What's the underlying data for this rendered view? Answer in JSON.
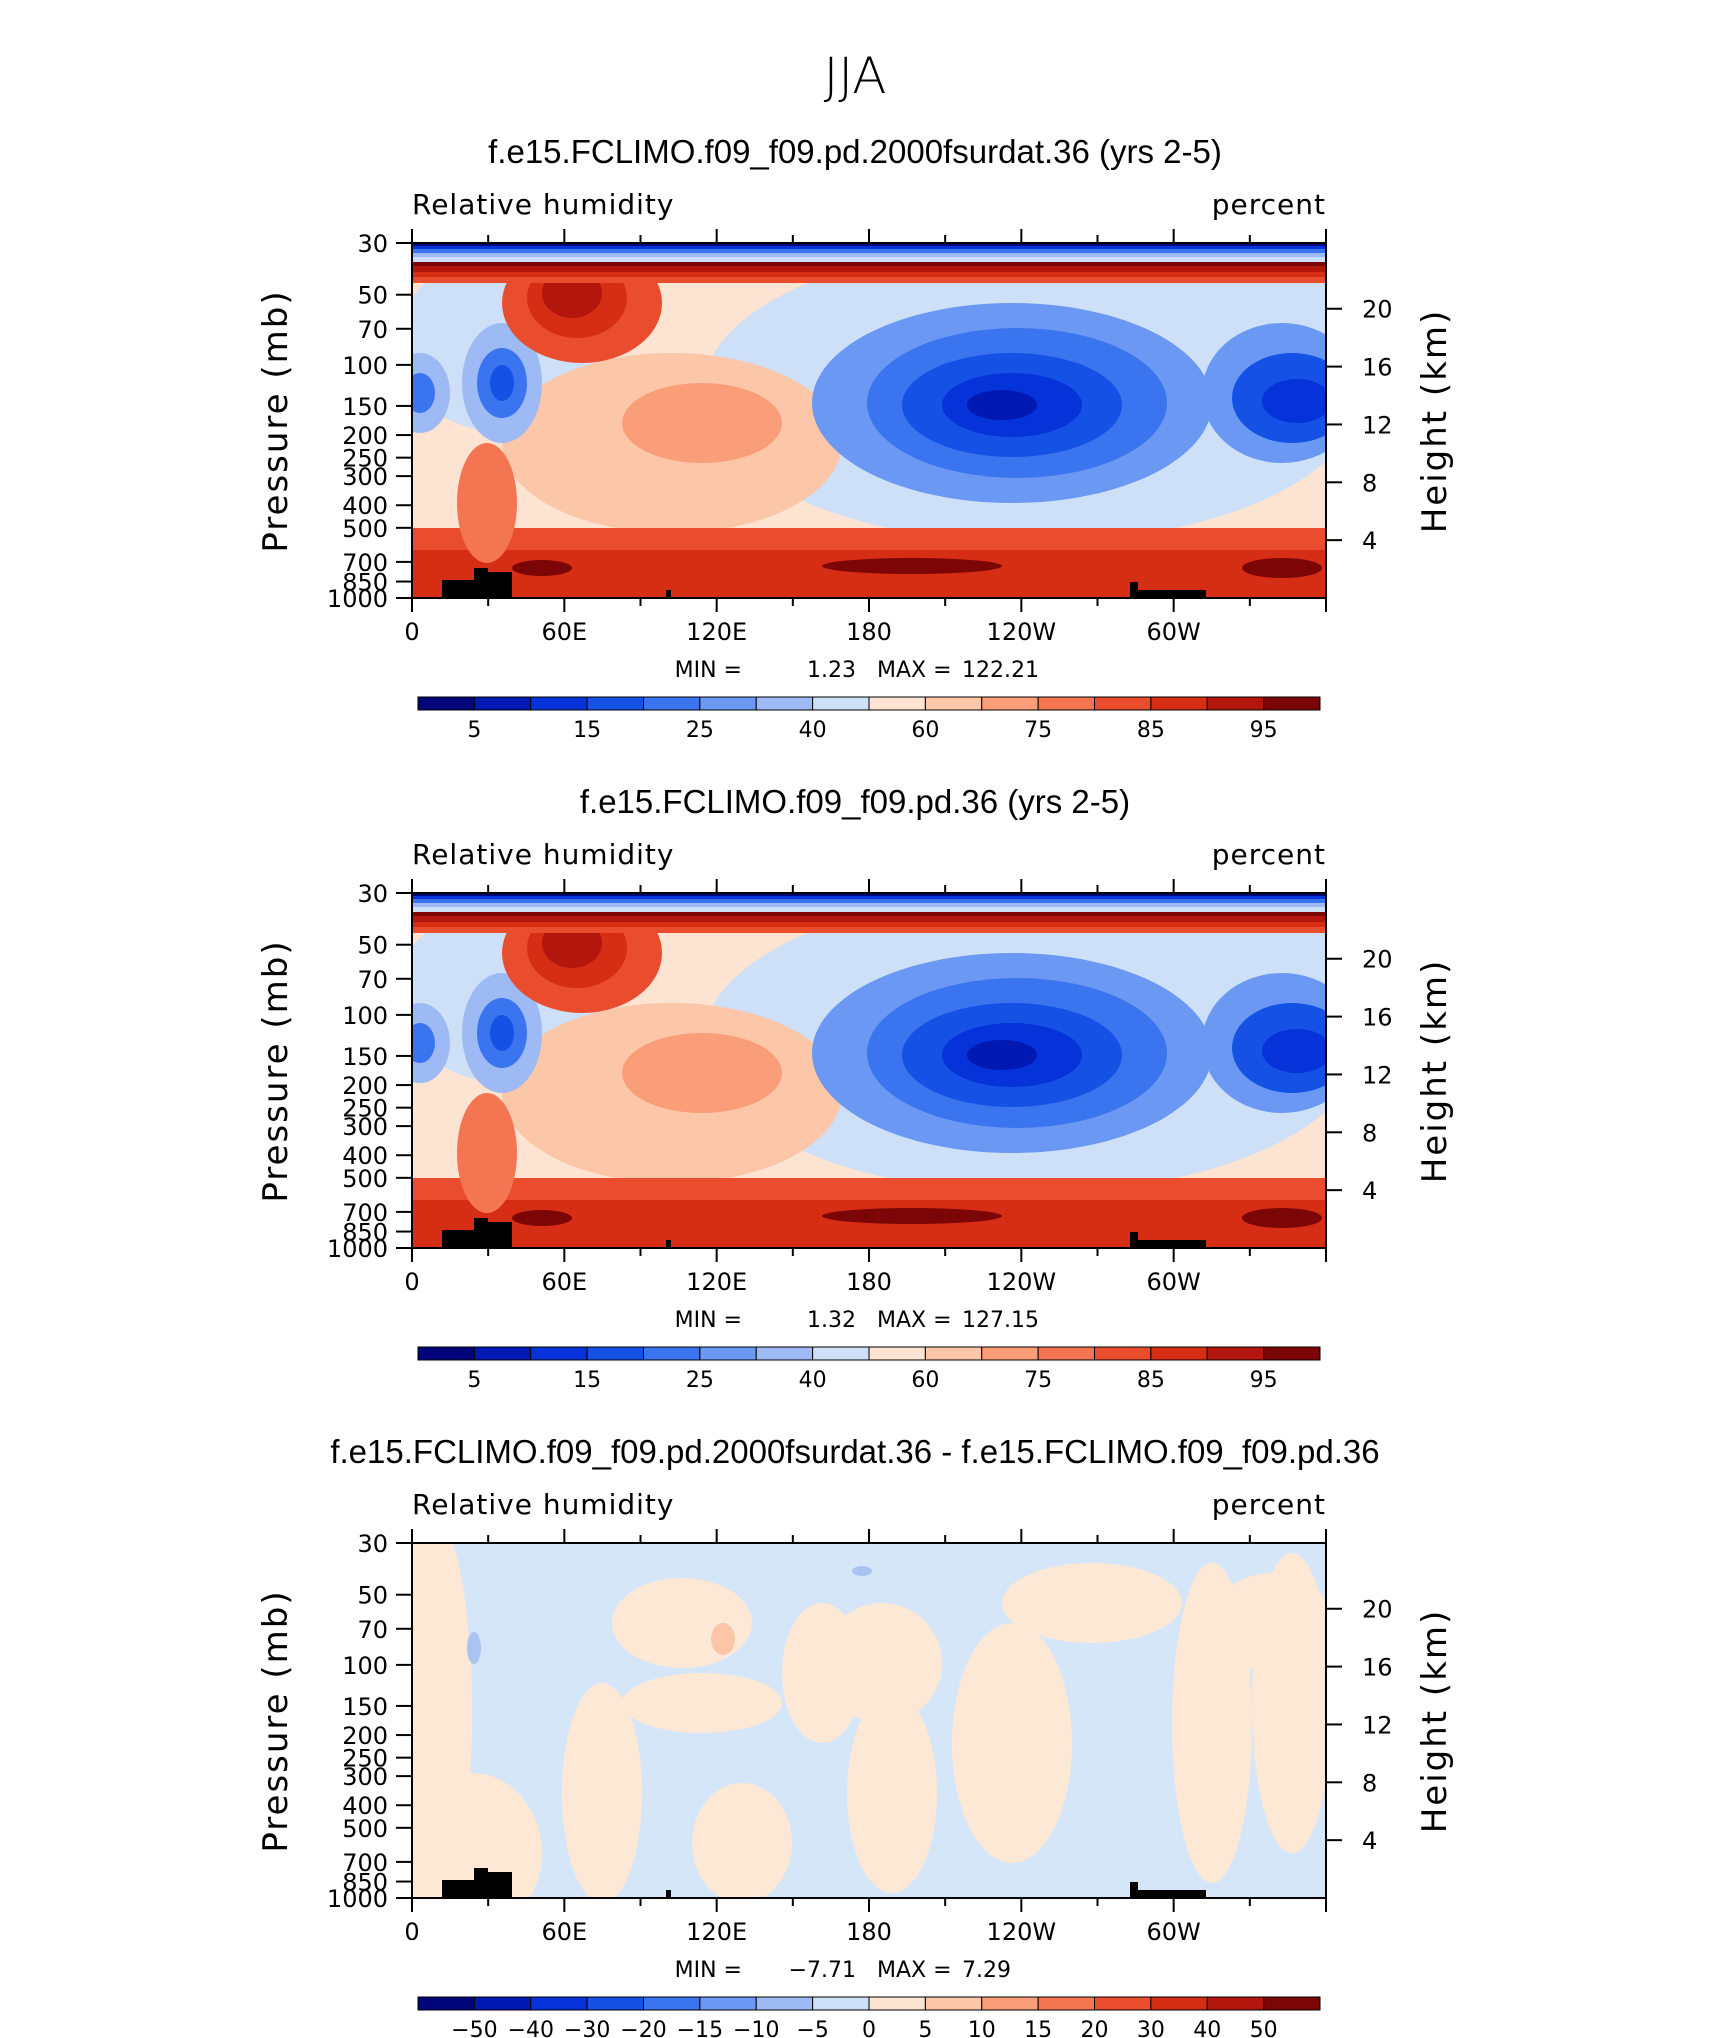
{
  "figure": {
    "title": "JJA"
  },
  "chart_data": [
    {
      "type": "heatmap",
      "title": "f.e15.FCLIMO.f09_f09.pd.2000fsurdat.36 (yrs 2-5)",
      "left_label": "Relative humidity",
      "right_label": "percent",
      "xlabel": "",
      "ylabel": "Pressure (mb)",
      "y2label": "Height (km)",
      "x_ticks": [
        "0",
        "60E",
        "120E",
        "180",
        "120W",
        "60W"
      ],
      "x_tick_values": [
        0,
        60,
        120,
        180,
        240,
        300
      ],
      "xlim": [
        0,
        360
      ],
      "y_ticks": [
        "30",
        "50",
        "70",
        "100",
        "150",
        "200",
        "250",
        "300",
        "400",
        "500",
        "700",
        "850",
        "1000"
      ],
      "y_tick_values": [
        30,
        50,
        70,
        100,
        150,
        200,
        250,
        300,
        400,
        500,
        700,
        850,
        1000
      ],
      "ylim": [
        1000,
        30
      ],
      "y_scale": "log",
      "y2_ticks": [
        "20",
        "16",
        "12",
        "8",
        "4"
      ],
      "y2_tick_values": [
        20,
        16,
        12,
        8,
        4
      ],
      "stats": {
        "min_label": "MIN =",
        "min": "1.23",
        "max_label": "MAX =",
        "max": "122.21"
      },
      "colorbar": {
        "labels": [
          "5",
          "15",
          "25",
          "40",
          "60",
          "75",
          "85",
          "95"
        ],
        "colors": [
          "#00067a",
          "#0019b3",
          "#0532d9",
          "#1651e6",
          "#3a74ee",
          "#6b98f2",
          "#9ebaf4",
          "#cde0f8",
          "#fde3d1",
          "#fcc6a8",
          "#fa9e7a",
          "#f47552",
          "#ea4d2e",
          "#d62d15",
          "#b3160c",
          "#7c0605"
        ]
      },
      "features": [
        "dry-core-central-pacific",
        "moist-boundary-layer",
        "dry-north-atlantic",
        "topography-africa",
        "topography-andes"
      ]
    },
    {
      "type": "heatmap",
      "title": "f.e15.FCLIMO.f09_f09.pd.36 (yrs 2-5)",
      "left_label": "Relative humidity",
      "right_label": "percent",
      "xlabel": "",
      "ylabel": "Pressure (mb)",
      "y2label": "Height (km)",
      "x_ticks": [
        "0",
        "60E",
        "120E",
        "180",
        "120W",
        "60W"
      ],
      "x_tick_values": [
        0,
        60,
        120,
        180,
        240,
        300
      ],
      "xlim": [
        0,
        360
      ],
      "y_ticks": [
        "30",
        "50",
        "70",
        "100",
        "150",
        "200",
        "250",
        "300",
        "400",
        "500",
        "700",
        "850",
        "1000"
      ],
      "y_tick_values": [
        30,
        50,
        70,
        100,
        150,
        200,
        250,
        300,
        400,
        500,
        700,
        850,
        1000
      ],
      "ylim": [
        1000,
        30
      ],
      "y_scale": "log",
      "y2_ticks": [
        "20",
        "16",
        "12",
        "8",
        "4"
      ],
      "y2_tick_values": [
        20,
        16,
        12,
        8,
        4
      ],
      "stats": {
        "min_label": "MIN =",
        "min": "1.32",
        "max_label": "MAX =",
        "max": "127.15"
      },
      "colorbar": {
        "labels": [
          "5",
          "15",
          "25",
          "40",
          "60",
          "75",
          "85",
          "95"
        ],
        "colors": [
          "#00067a",
          "#0019b3",
          "#0532d9",
          "#1651e6",
          "#3a74ee",
          "#6b98f2",
          "#9ebaf4",
          "#cde0f8",
          "#fde3d1",
          "#fcc6a8",
          "#fa9e7a",
          "#f47552",
          "#ea4d2e",
          "#d62d15",
          "#b3160c",
          "#7c0605"
        ]
      },
      "features": [
        "dry-core-central-pacific",
        "moist-boundary-layer",
        "dry-north-atlantic",
        "topography-africa",
        "topography-andes"
      ]
    },
    {
      "type": "heatmap",
      "title": "f.e15.FCLIMO.f09_f09.pd.2000fsurdat.36 - f.e15.FCLIMO.f09_f09.pd.36",
      "left_label": "Relative humidity",
      "right_label": "percent",
      "xlabel": "",
      "ylabel": "Pressure (mb)",
      "y2label": "Height (km)",
      "x_ticks": [
        "0",
        "60E",
        "120E",
        "180",
        "120W",
        "60W"
      ],
      "x_tick_values": [
        0,
        60,
        120,
        180,
        240,
        300
      ],
      "xlim": [
        0,
        360
      ],
      "y_ticks": [
        "30",
        "50",
        "70",
        "100",
        "150",
        "200",
        "250",
        "300",
        "400",
        "500",
        "700",
        "850",
        "1000"
      ],
      "y_tick_values": [
        30,
        50,
        70,
        100,
        150,
        200,
        250,
        300,
        400,
        500,
        700,
        850,
        1000
      ],
      "ylim": [
        1000,
        30
      ],
      "y_scale": "log",
      "y2_ticks": [
        "20",
        "16",
        "12",
        "8",
        "4"
      ],
      "y2_tick_values": [
        20,
        16,
        12,
        8,
        4
      ],
      "stats": {
        "min_label": "MIN =",
        "min": "−7.71",
        "max_label": "MAX =",
        "max": "7.29"
      },
      "colorbar": {
        "labels": [
          "−50",
          "−40",
          "−30",
          "−20",
          "−15",
          "−10",
          "−5",
          "0",
          "5",
          "10",
          "15",
          "20",
          "30",
          "40",
          "50"
        ],
        "colors": [
          "#00067a",
          "#0019b3",
          "#0532d9",
          "#1651e6",
          "#3a74ee",
          "#6b98f2",
          "#9ebaf4",
          "#cde0f8",
          "#fde3d1",
          "#fcc6a8",
          "#fa9e7a",
          "#f47552",
          "#ea4d2e",
          "#d62d15",
          "#b3160c",
          "#7c0605"
        ]
      },
      "features": [
        "weak-differences",
        "topography-africa",
        "topography-andes"
      ]
    }
  ]
}
